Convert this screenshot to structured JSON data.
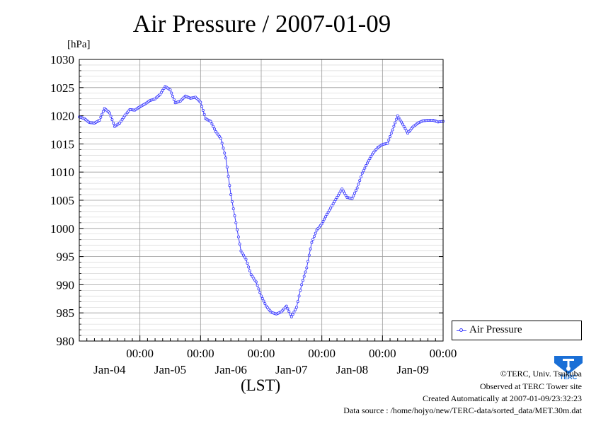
{
  "chart_data": {
    "type": "line",
    "title": "Air Pressure / 2007-01-09",
    "ylabel": "[hPa]",
    "xlabel": "(LST)",
    "ylim": [
      980,
      1030
    ],
    "y_ticks": [
      980,
      985,
      990,
      995,
      1000,
      1005,
      1010,
      1015,
      1020,
      1025,
      1030
    ],
    "x_ticks": [
      {
        "time": "00:00",
        "date": "Jan-04"
      },
      {
        "time": "00:00",
        "date": "Jan-05"
      },
      {
        "time": "00:00",
        "date": "Jan-06"
      },
      {
        "time": "00:00",
        "date": "Jan-07"
      },
      {
        "time": "00:00",
        "date": "Jan-08"
      },
      {
        "time": "00:00",
        "date": "Jan-09"
      }
    ],
    "x_unit": "hours",
    "xlim": [
      "2007-01-03 00:00",
      "2007-01-09 00:00"
    ],
    "grid": true,
    "legend": "right",
    "series": [
      {
        "name": "Air Pressure",
        "color": "#3a3aff",
        "points": [
          [
            "2007-01-03 00:00",
            1019.8
          ],
          [
            "2007-01-03 02:00",
            1019.5
          ],
          [
            "2007-01-03 04:00",
            1018.8
          ],
          [
            "2007-01-03 06:00",
            1018.7
          ],
          [
            "2007-01-03 08:00",
            1019.2
          ],
          [
            "2007-01-03 10:00",
            1021.3
          ],
          [
            "2007-01-03 12:00",
            1020.5
          ],
          [
            "2007-01-03 14:00",
            1018.1
          ],
          [
            "2007-01-03 16:00",
            1018.7
          ],
          [
            "2007-01-03 18:00",
            1020.0
          ],
          [
            "2007-01-03 20:00",
            1021.1
          ],
          [
            "2007-01-03 22:00",
            1021.0
          ],
          [
            "2007-01-04 00:00",
            1021.6
          ],
          [
            "2007-01-04 02:00",
            1022.1
          ],
          [
            "2007-01-04 04:00",
            1022.7
          ],
          [
            "2007-01-04 06:00",
            1023.0
          ],
          [
            "2007-01-04 08:00",
            1023.8
          ],
          [
            "2007-01-04 10:00",
            1025.2
          ],
          [
            "2007-01-04 12:00",
            1024.6
          ],
          [
            "2007-01-04 14:00",
            1022.3
          ],
          [
            "2007-01-04 16:00",
            1022.6
          ],
          [
            "2007-01-04 18:00",
            1023.5
          ],
          [
            "2007-01-04 20:00",
            1023.1
          ],
          [
            "2007-01-04 22:00",
            1023.3
          ],
          [
            "2007-01-05 00:00",
            1022.4
          ],
          [
            "2007-01-05 02:00",
            1019.5
          ],
          [
            "2007-01-05 04:00",
            1019.0
          ],
          [
            "2007-01-05 06:00",
            1017.2
          ],
          [
            "2007-01-05 08:00",
            1016.0
          ],
          [
            "2007-01-05 10:00",
            1012.5
          ],
          [
            "2007-01-05 12:00",
            1006.0
          ],
          [
            "2007-01-05 14:00",
            1001.0
          ],
          [
            "2007-01-05 16:00",
            996.0
          ],
          [
            "2007-01-05 18:00",
            994.5
          ],
          [
            "2007-01-05 20:00",
            991.8
          ],
          [
            "2007-01-05 22:00",
            990.5
          ],
          [
            "2007-01-06 00:00",
            988.0
          ],
          [
            "2007-01-06 02:00",
            986.2
          ],
          [
            "2007-01-06 04:00",
            985.1
          ],
          [
            "2007-01-06 06:00",
            984.8
          ],
          [
            "2007-01-06 08:00",
            985.2
          ],
          [
            "2007-01-06 10:00",
            986.2
          ],
          [
            "2007-01-06 12:00",
            984.3
          ],
          [
            "2007-01-06 14:00",
            986.0
          ],
          [
            "2007-01-06 16:00",
            990.0
          ],
          [
            "2007-01-06 18:00",
            993.0
          ],
          [
            "2007-01-06 20:00",
            997.5
          ],
          [
            "2007-01-06 22:00",
            999.7
          ],
          [
            "2007-01-07 00:00",
            1000.8
          ],
          [
            "2007-01-07 02:00",
            1002.5
          ],
          [
            "2007-01-07 04:00",
            1004.0
          ],
          [
            "2007-01-07 06:00",
            1005.5
          ],
          [
            "2007-01-07 08:00",
            1007.0
          ],
          [
            "2007-01-07 10:00",
            1005.5
          ],
          [
            "2007-01-07 12:00",
            1005.3
          ],
          [
            "2007-01-07 14:00",
            1007.2
          ],
          [
            "2007-01-07 16:00",
            1009.8
          ],
          [
            "2007-01-07 18:00",
            1011.6
          ],
          [
            "2007-01-07 20:00",
            1013.2
          ],
          [
            "2007-01-07 22:00",
            1014.3
          ],
          [
            "2007-01-08 00:00",
            1014.9
          ],
          [
            "2007-01-08 02:00",
            1015.1
          ],
          [
            "2007-01-08 04:00",
            1017.5
          ],
          [
            "2007-01-08 06:00",
            1020.0
          ],
          [
            "2007-01-08 08:00",
            1018.5
          ],
          [
            "2007-01-08 10:00",
            1016.9
          ],
          [
            "2007-01-08 12:00",
            1018.0
          ],
          [
            "2007-01-08 14:00",
            1018.7
          ],
          [
            "2007-01-08 16:00",
            1019.1
          ],
          [
            "2007-01-08 18:00",
            1019.2
          ],
          [
            "2007-01-08 20:00",
            1019.2
          ],
          [
            "2007-01-08 22:00",
            1018.9
          ],
          [
            "2007-01-09 00:00",
            1019.0
          ]
        ]
      }
    ]
  },
  "footer": {
    "credit": "©TERC, Univ. Tsukuba",
    "site": "Observed at TERC Tower site",
    "created": "Created Automatically at 2007-01-09/23:32:23",
    "source": "Data source : /home/hojyo/new/TERC-data/sorted_data/MET.30m.dat"
  },
  "logo": {
    "text": "TERC",
    "color": "#1a6fd6"
  }
}
